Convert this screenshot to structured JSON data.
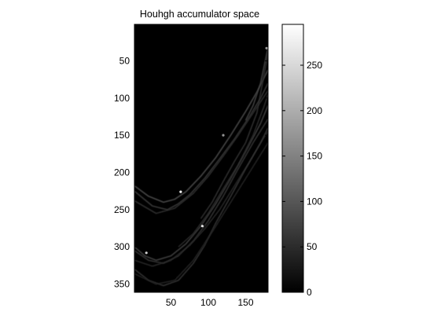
{
  "chart_data": {
    "type": "heatmap",
    "title": "Houhgh accumulator space",
    "xlabel": "",
    "ylabel": "",
    "colormap": "gray",
    "x_range": [
      1,
      180
    ],
    "y_range": [
      1,
      361
    ],
    "y_reversed": true,
    "x_ticks": [
      "50",
      "100",
      "150"
    ],
    "x_tick_values": [
      50,
      100,
      150
    ],
    "y_ticks": [
      "50",
      "100",
      "150",
      "200",
      "250",
      "300",
      "350"
    ],
    "y_tick_values": [
      50,
      100,
      150,
      200,
      250,
      300,
      350
    ],
    "colorbar": {
      "range": [
        0,
        295
      ],
      "ticks": [
        "0",
        "50",
        "100",
        "150",
        "200",
        "250"
      ],
      "tick_values": [
        0,
        50,
        100,
        150,
        200,
        250
      ]
    },
    "curves": [
      {
        "points": [
          [
            1,
            218
          ],
          [
            20,
            232
          ],
          [
            40,
            240
          ],
          [
            55,
            236
          ],
          [
            70,
            226
          ],
          [
            90,
            205
          ],
          [
            110,
            180
          ],
          [
            130,
            150
          ],
          [
            150,
            118
          ],
          [
            165,
            92
          ],
          [
            180,
            62
          ]
        ],
        "intensity": 0.28
      },
      {
        "points": [
          [
            1,
            225
          ],
          [
            25,
            245
          ],
          [
            45,
            250
          ],
          [
            60,
            242
          ],
          [
            75,
            230
          ],
          [
            95,
            208
          ],
          [
            115,
            182
          ],
          [
            135,
            155
          ],
          [
            155,
            125
          ],
          [
            170,
            100
          ],
          [
            180,
            80
          ]
        ],
        "intensity": 0.22
      },
      {
        "points": [
          [
            1,
            238
          ],
          [
            30,
            255
          ],
          [
            55,
            248
          ],
          [
            80,
            228
          ],
          [
            100,
            205
          ],
          [
            120,
            178
          ],
          [
            140,
            150
          ],
          [
            160,
            120
          ],
          [
            180,
            90
          ]
        ],
        "intensity": 0.18
      },
      {
        "points": [
          [
            1,
            300
          ],
          [
            15,
            312
          ],
          [
            30,
            318
          ],
          [
            50,
            312
          ],
          [
            70,
            296
          ],
          [
            90,
            272
          ],
          [
            110,
            242
          ],
          [
            130,
            208
          ],
          [
            150,
            172
          ],
          [
            170,
            134
          ],
          [
            180,
            110
          ]
        ],
        "intensity": 0.24
      },
      {
        "points": [
          [
            1,
            305
          ],
          [
            20,
            318
          ],
          [
            40,
            322
          ],
          [
            60,
            312
          ],
          [
            80,
            292
          ],
          [
            100,
            265
          ],
          [
            120,
            232
          ],
          [
            140,
            195
          ],
          [
            160,
            160
          ],
          [
            180,
            128
          ]
        ],
        "intensity": 0.2
      },
      {
        "points": [
          [
            1,
            318
          ],
          [
            25,
            326
          ],
          [
            50,
            318
          ],
          [
            75,
            298
          ],
          [
            95,
            276
          ],
          [
            115,
            250
          ],
          [
            135,
            218
          ],
          [
            155,
            186
          ],
          [
            175,
            152
          ],
          [
            180,
            145
          ]
        ],
        "intensity": 0.15
      },
      {
        "points": [
          [
            1,
            330
          ],
          [
            20,
            345
          ],
          [
            40,
            352
          ],
          [
            60,
            345
          ],
          [
            80,
            322
          ],
          [
            95,
            298
          ],
          [
            110,
            268
          ],
          [
            130,
            232
          ],
          [
            150,
            195
          ],
          [
            170,
            160
          ],
          [
            180,
            140
          ]
        ],
        "intensity": 0.2
      },
      {
        "points": [
          [
            1,
            336
          ],
          [
            30,
            350
          ],
          [
            55,
            345
          ],
          [
            80,
            318
          ],
          [
            105,
            280
          ],
          [
            130,
            240
          ],
          [
            155,
            200
          ],
          [
            180,
            160
          ]
        ],
        "intensity": 0.14
      },
      {
        "points": [
          [
            60,
            300
          ],
          [
            80,
            282
          ],
          [
            100,
            255
          ],
          [
            120,
            222
          ],
          [
            140,
            190
          ],
          [
            160,
            150
          ],
          [
            175,
            110
          ],
          [
            180,
            95
          ]
        ],
        "intensity": 0.16
      },
      {
        "points": [
          [
            90,
            262
          ],
          [
            105,
            240
          ],
          [
            120,
            212
          ],
          [
            135,
            185
          ],
          [
            150,
            160
          ],
          [
            165,
            120
          ],
          [
            180,
            40
          ]
        ],
        "intensity": 0.18
      },
      {
        "points": [
          [
            150,
            130
          ],
          [
            160,
            110
          ],
          [
            170,
            80
          ],
          [
            180,
            32
          ]
        ],
        "intensity": 0.25
      }
    ],
    "peaks": [
      {
        "x": 63,
        "y": 226,
        "value": 295
      },
      {
        "x": 92,
        "y": 272,
        "value": 260
      },
      {
        "x": 17,
        "y": 308,
        "value": 240
      },
      {
        "x": 120,
        "y": 150,
        "value": 170
      },
      {
        "x": 178,
        "y": 33,
        "value": 180
      }
    ]
  }
}
